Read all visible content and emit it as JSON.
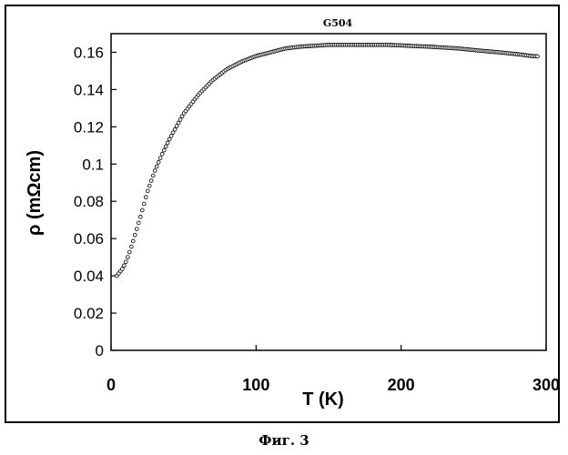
{
  "caption": "Фиг. 3",
  "chart_data": {
    "type": "scatter",
    "title": "G504",
    "xlabel": "T (K)",
    "ylabel": "ρ (mΩcm)",
    "xlim": [
      0,
      300
    ],
    "ylim": [
      0,
      0.17
    ],
    "xticks": [
      0,
      100,
      200,
      300
    ],
    "yticks": [
      0,
      0.02,
      0.04,
      0.06,
      0.08,
      0.1,
      0.12,
      0.14,
      0.16
    ],
    "ytick_labels": [
      "0",
      "0.02",
      "0.04",
      "0.06",
      "0.08",
      "0.1",
      "0.12",
      "0.14",
      "0.16"
    ],
    "grid": false,
    "marker": "open-circle",
    "series": [
      {
        "name": "G504",
        "x": [
          4,
          5,
          6,
          8,
          10,
          12,
          15,
          20,
          25,
          30,
          35,
          40,
          45,
          50,
          55,
          60,
          65,
          70,
          75,
          80,
          85,
          90,
          95,
          100,
          110,
          120,
          130,
          140,
          150,
          160,
          170,
          180,
          190,
          200,
          210,
          220,
          230,
          240,
          250,
          260,
          270,
          280,
          290,
          294
        ],
        "y": [
          0.04,
          0.041,
          0.042,
          0.044,
          0.047,
          0.051,
          0.058,
          0.071,
          0.085,
          0.096,
          0.105,
          0.113,
          0.12,
          0.127,
          0.132,
          0.137,
          0.141,
          0.145,
          0.148,
          0.151,
          0.153,
          0.155,
          0.1565,
          0.158,
          0.16,
          0.162,
          0.163,
          0.1635,
          0.164,
          0.164,
          0.164,
          0.164,
          0.164,
          0.1637,
          0.1633,
          0.163,
          0.1625,
          0.162,
          0.1612,
          0.1605,
          0.1598,
          0.159,
          0.158,
          0.1578
        ]
      }
    ]
  }
}
